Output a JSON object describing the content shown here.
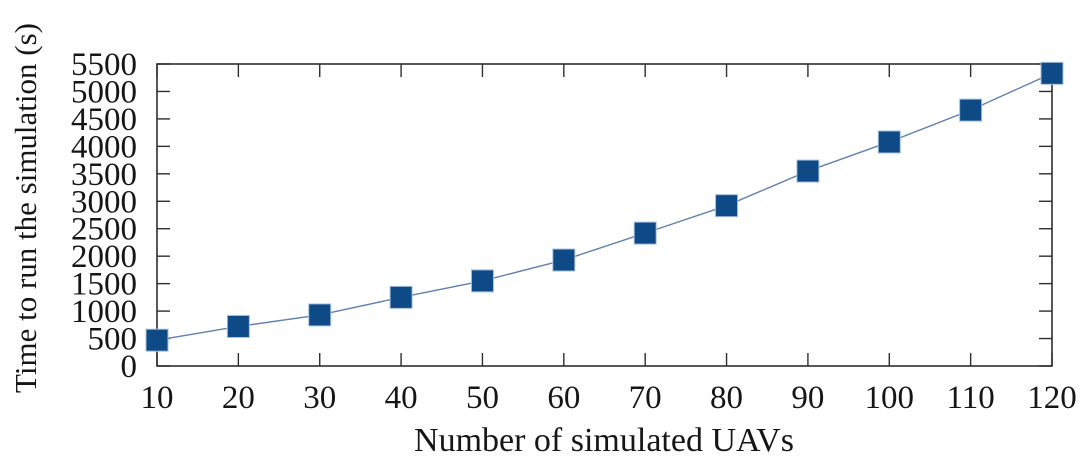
{
  "figure": {
    "background": "#ffffff",
    "axis_color": "#2e2e2e",
    "text_color": "#161616"
  },
  "chart_data": {
    "type": "line",
    "title": "",
    "xlabel": "Number of simulated UAVs",
    "ylabel": "Time to run the simulation (s)",
    "x": [
      10,
      20,
      30,
      40,
      50,
      60,
      70,
      80,
      90,
      100,
      110,
      120
    ],
    "y": [
      470,
      720,
      930,
      1250,
      1550,
      1930,
      2420,
      2920,
      3550,
      4080,
      4660,
      5330
    ],
    "xlim": [
      10,
      120
    ],
    "ylim": [
      0,
      5500
    ],
    "x_ticks": [
      10,
      20,
      30,
      40,
      50,
      60,
      70,
      80,
      90,
      100,
      110,
      120
    ],
    "y_ticks": [
      0,
      500,
      1000,
      1500,
      2000,
      2500,
      3000,
      3500,
      4000,
      4500,
      5000,
      5500
    ],
    "grid": false,
    "legend": "none",
    "marker": {
      "shape": "square",
      "size": 22,
      "color": "#0e4a85",
      "edge_color": "#a6c0dd"
    },
    "line": {
      "color": "#6080b2",
      "width": 1.4
    }
  }
}
